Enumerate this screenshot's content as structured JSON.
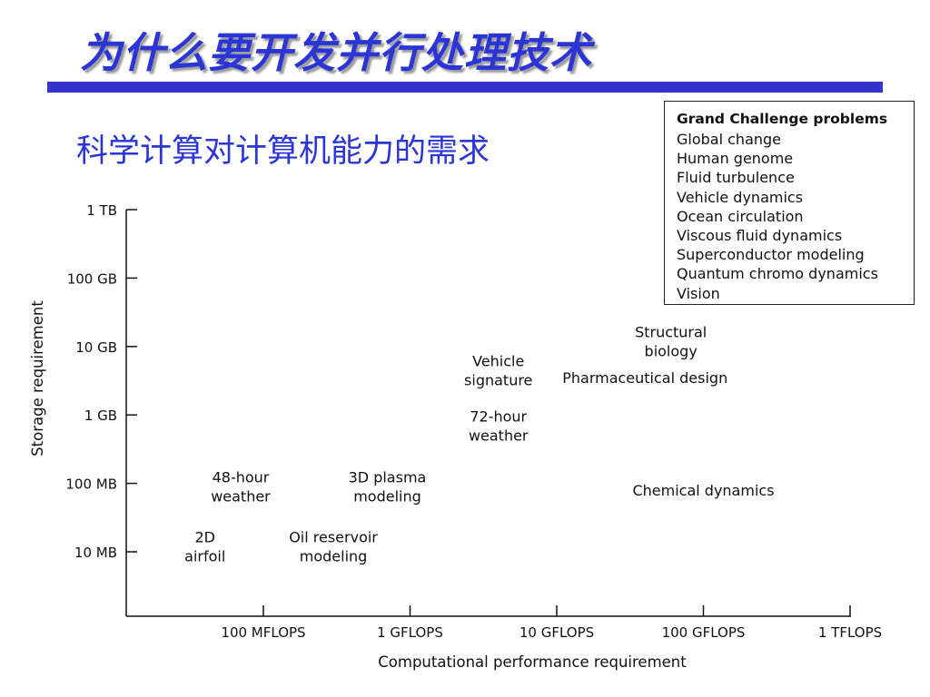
{
  "slide": {
    "title": "为什么要开发并行处理技术",
    "subtitle": "科学计算对计算机能力的需求",
    "colors": {
      "title": "#2b35d6",
      "bar": "#3333cc"
    }
  },
  "legend": {
    "title": "Grand Challenge problems",
    "items": [
      "Global change",
      "Human genome",
      "Fluid turbulence",
      "Vehicle dynamics",
      "Ocean circulation",
      "Viscous fluid dynamics",
      "Superconductor modeling",
      "Quantum chromo dynamics",
      "Vision"
    ]
  },
  "chart_data": {
    "type": "scatter",
    "xlabel": "Computational performance requirement",
    "ylabel": "Storage requirement",
    "x_ticks": [
      "100 MFLOPS",
      "1 GFLOPS",
      "10 GFLOPS",
      "100 GFLOPS",
      "1 TFLOPS"
    ],
    "y_ticks": [
      "10 MB",
      "100 MB",
      "1 GB",
      "10 GB",
      "100 GB",
      "1 TB"
    ],
    "x_scale": "log",
    "y_scale": "log",
    "x_unit": "FLOPS",
    "y_unit": "bytes",
    "xlim": [
      20000000,
      1000000000000
    ],
    "ylim": [
      1500000,
      1000000000000
    ],
    "grid": false,
    "points": [
      {
        "label": [
          "2D",
          "airfoil"
        ],
        "x": 40000000,
        "y": 12000000
      },
      {
        "label": [
          "48-hour",
          "weather"
        ],
        "x": 70000000,
        "y": 90000000
      },
      {
        "label": [
          "Oil reservoir",
          "modeling"
        ],
        "x": 300000000,
        "y": 12000000
      },
      {
        "label": [
          "3D plasma",
          "modeling"
        ],
        "x": 700000000,
        "y": 90000000
      },
      {
        "label": [
          "Vehicle",
          "signature"
        ],
        "x": 4000000000,
        "y": 4500000000
      },
      {
        "label": [
          "72-hour",
          "weather"
        ],
        "x": 4000000000,
        "y": 700000000
      },
      {
        "label": [
          "Structural",
          "biology"
        ],
        "x": 60000000000,
        "y": 12000000000
      },
      {
        "label": [
          "Pharmaceutical design"
        ],
        "x": 40000000000,
        "y": 3500000000
      },
      {
        "label": [
          "Chemical dynamics"
        ],
        "x": 100000000000,
        "y": 80000000
      }
    ]
  }
}
